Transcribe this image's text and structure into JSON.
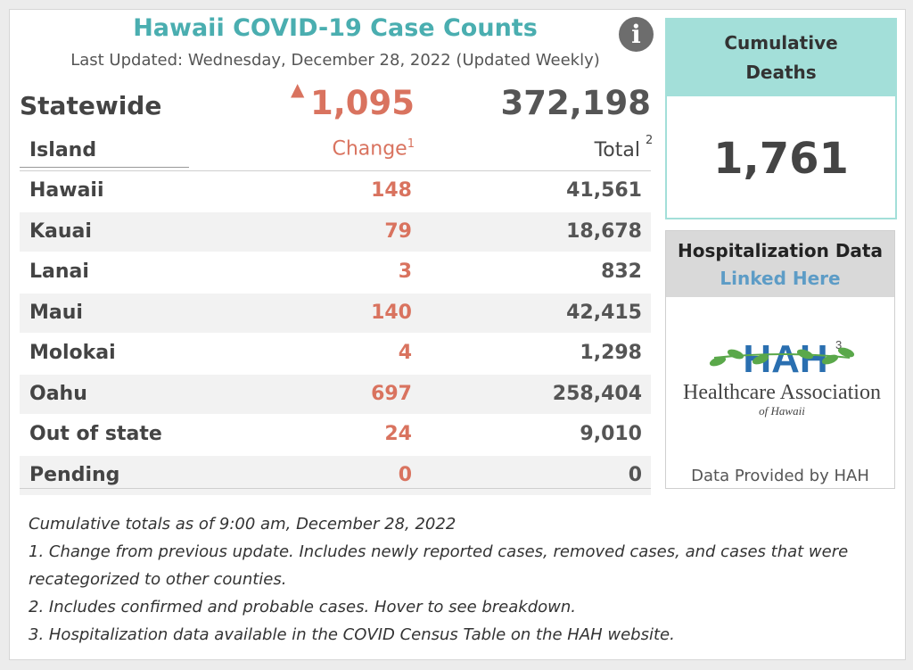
{
  "title": "Hawaii COVID-19 Case Counts",
  "last_updated": "Last Updated: Wednesday, December 28, 2022 (Updated Weekly)",
  "info_icon": "i",
  "statewide": {
    "label": "Statewide",
    "change_arrow": "▲",
    "change": "1,095",
    "total": "372,198"
  },
  "table": {
    "col_island": "Island",
    "col_change": "Change",
    "col_change_sup": "1",
    "col_total": "Total",
    "col_total_sup": "2",
    "rows": [
      {
        "island": "Hawaii",
        "change": "148",
        "total": "41,561"
      },
      {
        "island": "Kauai",
        "change": "79",
        "total": "18,678"
      },
      {
        "island": "Lanai",
        "change": "3",
        "total": "832"
      },
      {
        "island": "Maui",
        "change": "140",
        "total": "42,415"
      },
      {
        "island": "Molokai",
        "change": "4",
        "total": "1,298"
      },
      {
        "island": "Oahu",
        "change": "697",
        "total": "258,404"
      },
      {
        "island": "Out of state",
        "change": "24",
        "total": "9,010"
      },
      {
        "island": "Pending",
        "change": "0",
        "total": "0"
      }
    ]
  },
  "deaths": {
    "line1": "Cumulative",
    "line2": "Deaths",
    "value": "1,761"
  },
  "hospitalization": {
    "title": "Hospitalization Data",
    "link": "Linked Here",
    "logo_text": "HAH",
    "logo_sup": "3",
    "logo_org": "Healthcare Association",
    "logo_sub": "of Hawaii",
    "caption": "Data Provided by HAH"
  },
  "notes": [
    "Cumulative totals as of 9:00 am, December 28, 2022",
    "1. Change from previous update. Includes newly reported cases, removed cases, and cases that were recategorized to other counties.",
    "2. Includes confirmed and probable cases. Hover to see breakdown.",
    "3. Hospitalization data available in the COVID Census Table on the HAH website."
  ],
  "colors": {
    "title_teal": "#4aaeb0",
    "change_red": "#d9735f",
    "deaths_teal": "#a3dfd9",
    "link_blue": "#5d9cc6",
    "logo_blue": "#2a6fb0",
    "logo_green": "#5aa84a"
  }
}
